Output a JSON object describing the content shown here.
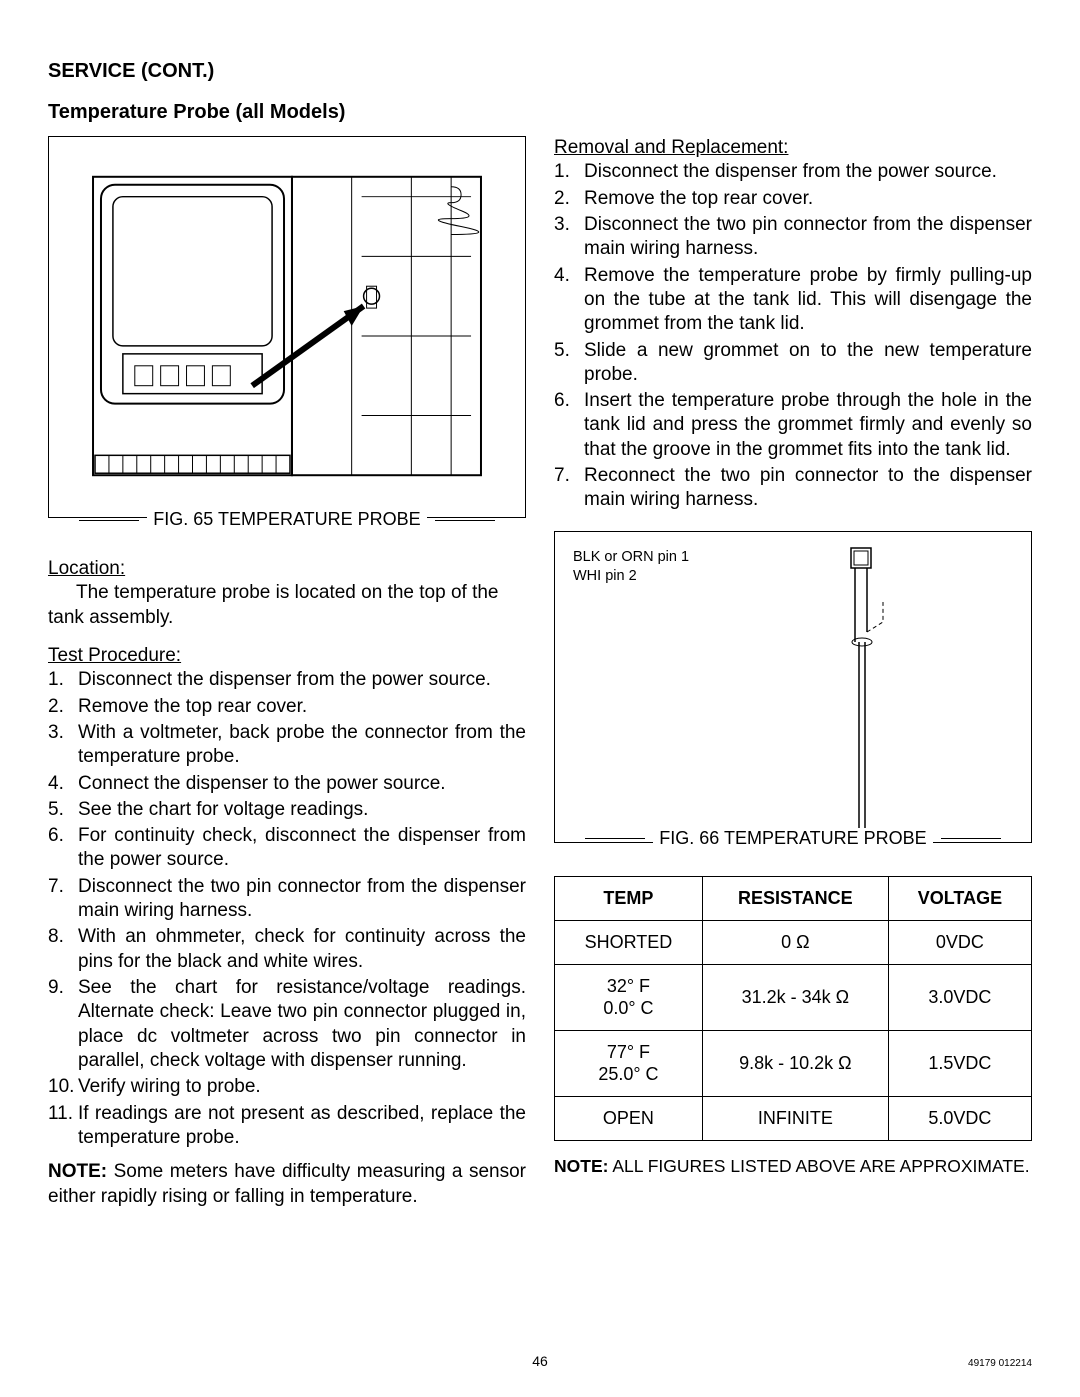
{
  "headings": {
    "service": "SERVICE (CONT.)",
    "section": "Temperature Probe (all Models)"
  },
  "fig65": {
    "caption": "FIG. 65 TEMPERATURE PROBE"
  },
  "fig66": {
    "caption": "FIG. 66 TEMPERATURE PROBE",
    "pin1": "BLK or ORN pin 1",
    "pin2": "WHI pin 2"
  },
  "left": {
    "location_h": "Location:",
    "location_t": "The temperature probe is located on the top of the tank assembly.",
    "test_h": "Test Procedure:",
    "steps": [
      "Disconnect the dispenser from the power source.",
      "Remove the top rear cover.",
      "With a voltmeter, back probe the connector from the temperature probe.",
      "Connect the dispenser to the power source.",
      "See the chart for voltage readings.",
      "For continuity check, disconnect the dispenser from the power source.",
      "Disconnect the two pin connector from the dispenser main wiring harness.",
      "With an ohmmeter, check for continuity across the pins for the black and white wires.",
      "See the chart for resistance/voltage readings. Alternate check: Leave two pin connector plugged in, place dc voltmeter across two pin connector in parallel, check voltage with dispenser running.",
      "Verify wiring to probe.",
      "If readings are not present as described, replace the temperature probe."
    ],
    "note_b": "NOTE:",
    "note_t": " Some meters have difficulty measuring a sensor either rapidly rising or falling in temperature."
  },
  "right": {
    "removal_h": "Removal and Replacement:",
    "steps": [
      "Disconnect the dispenser from the power source.",
      "Remove the top rear cover.",
      "Disconnect the two pin connector from the dispenser main wiring harness.",
      "Remove the temperature probe by firmly pulling-up on the tube at the tank lid. This will disengage the grommet from the tank lid.",
      "Slide a new grommet on to the new temperature probe.",
      "Insert the temperature probe through the hole in the tank lid and press the grommet firmly and evenly so that the groove in the grommet fits into the tank lid.",
      "Reconnect the two pin connector to the dispenser main wiring harness."
    ]
  },
  "table": {
    "headers": [
      "TEMP",
      "RESISTANCE",
      "VOLTAGE"
    ],
    "rows": [
      [
        "SHORTED",
        "0 Ω",
        "0VDC"
      ],
      [
        "32° F\n0.0° C",
        "31.2k - 34k Ω",
        "3.0VDC"
      ],
      [
        "77° F\n25.0° C",
        "9.8k - 10.2k Ω",
        "1.5VDC"
      ],
      [
        "OPEN",
        "INFINITE",
        "5.0VDC"
      ]
    ],
    "note_b": "NOTE:",
    "note_t": " ALL FIGURES LISTED ABOVE ARE APPROXIMATE."
  },
  "footer": {
    "page": "46",
    "doc": "49179  012214"
  }
}
